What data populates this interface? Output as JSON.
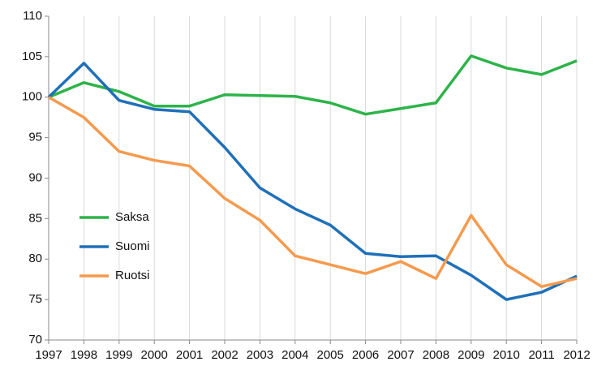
{
  "chart_data": {
    "type": "line",
    "x": [
      1997,
      1998,
      1999,
      2000,
      2001,
      2002,
      2003,
      2004,
      2005,
      2006,
      2007,
      2008,
      2009,
      2010,
      2011,
      2012
    ],
    "xlim": [
      1997,
      2012
    ],
    "xticks": [
      1997,
      1998,
      1999,
      2000,
      2001,
      2002,
      2003,
      2004,
      2005,
      2006,
      2007,
      2008,
      2009,
      2010,
      2011,
      2012
    ],
    "ylim": [
      70,
      110
    ],
    "yticks": [
      70,
      75,
      80,
      85,
      90,
      95,
      100,
      105,
      110
    ],
    "grid": "x",
    "legend": "center-left",
    "series": [
      {
        "name": "Saksa",
        "color": "#2db34a",
        "values": [
          100,
          101.8,
          100.7,
          98.9,
          98.9,
          100.3,
          100.2,
          100.1,
          99.3,
          97.9,
          98.6,
          99.3,
          105.1,
          103.6,
          102.8,
          104.5
        ]
      },
      {
        "name": "Suomi",
        "color": "#1f70b8",
        "values": [
          100,
          104.2,
          99.6,
          98.5,
          98.2,
          93.8,
          88.8,
          86.2,
          84.2,
          80.7,
          80.3,
          80.4,
          78.0,
          75.0,
          75.9,
          77.9
        ]
      },
      {
        "name": "Ruotsi",
        "color": "#f59a4e",
        "values": [
          100,
          97.5,
          93.3,
          92.2,
          91.5,
          87.5,
          84.8,
          80.4,
          79.3,
          78.2,
          79.7,
          77.6,
          85.4,
          79.3,
          76.6,
          77.6
        ]
      }
    ]
  }
}
